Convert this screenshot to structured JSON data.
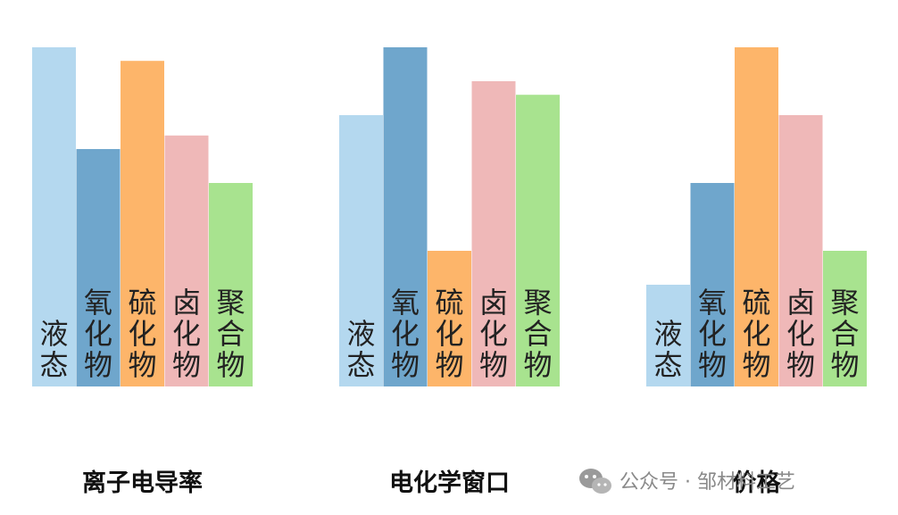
{
  "chart_data": [
    {
      "type": "bar",
      "title": "离子电导率",
      "categories": [
        "液态",
        "氧化物",
        "硫化物",
        "卤化物",
        "聚合物"
      ],
      "values": [
        100,
        70,
        96,
        74,
        60
      ],
      "ylim": [
        0,
        100
      ],
      "axes_visible": false,
      "grid": false
    },
    {
      "type": "bar",
      "title": "电化学窗口",
      "categories": [
        "液态",
        "氧化物",
        "硫化物",
        "卤化物",
        "聚合物"
      ],
      "values": [
        80,
        100,
        40,
        90,
        86
      ],
      "ylim": [
        0,
        100
      ],
      "axes_visible": false,
      "grid": false
    },
    {
      "type": "bar",
      "title": "价格",
      "categories": [
        "液态",
        "氧化物",
        "硫化物",
        "卤化物",
        "聚合物"
      ],
      "values": [
        30,
        60,
        100,
        80,
        40
      ],
      "ylim": [
        0,
        100
      ],
      "axes_visible": false,
      "grid": false
    }
  ],
  "colors": {
    "液态": "#b4d8ef",
    "氧化物": "#6fa6cc",
    "硫化物": "#fdb56a",
    "卤化物": "#efb8b8",
    "聚合物": "#a8e38f"
  },
  "watermark": {
    "icon": "wechat-icon",
    "text": "公众号 · 邹材料工艺"
  }
}
